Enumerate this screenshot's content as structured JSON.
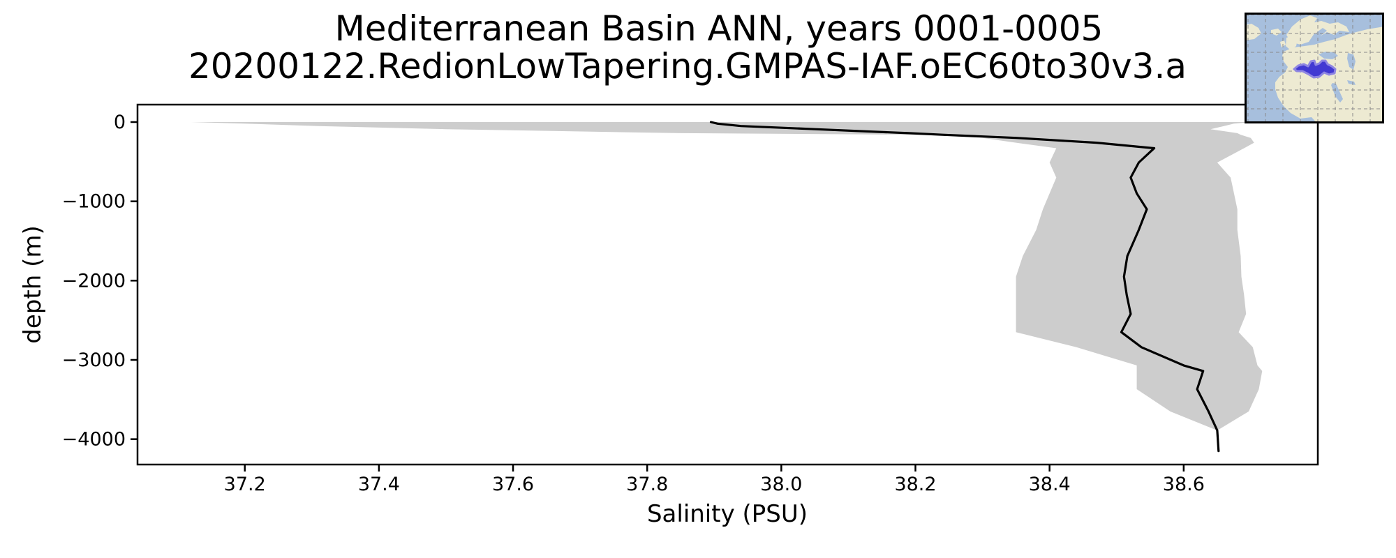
{
  "title": {
    "line1": "Mediterranean Basin ANN, years 0001-0005",
    "line2": "20200122.RedionLowTapering.GMPAS-IAF.oEC60to30v3.a"
  },
  "axes": {
    "x_label": "Salinity (PSU)",
    "y_label": "depth (m)"
  },
  "colors": {
    "figure_bg": "#ffffff",
    "line": "#000000",
    "band": "#cdcdcd",
    "spine": "#000000",
    "tick": "#000000",
    "map_ocean": "#a7bfdd",
    "map_land": "#edead2",
    "map_highlight": "#4239d2",
    "map_highlight_halo": "#8f86e2",
    "map_grid": "#8a8a8a",
    "map_border": "#000000"
  },
  "inset_map": {
    "description": "locator map of Europe / North Africa with Mediterranean Sea region highlighted",
    "highlighted_region": "Mediterranean Sea"
  },
  "chart_data": {
    "type": "line",
    "title": "Mediterranean Basin ANN, years 0001-0005\n20200122.RedionLowTapering.GMPAS-IAF.oEC60to30v3.a",
    "xlabel": "Salinity (PSU)",
    "ylabel": "depth (m)",
    "xlim": [
      37.04,
      38.8
    ],
    "ylim": [
      -4320,
      220
    ],
    "grid": false,
    "legend": "none",
    "x_ticks": {
      "values": [
        37.2,
        37.4,
        37.6,
        37.8,
        38.0,
        38.2,
        38.4,
        38.6
      ],
      "labels": [
        "37.2",
        "37.4",
        "37.6",
        "37.8",
        "38.0",
        "38.2",
        "38.4",
        "38.6"
      ]
    },
    "y_ticks": {
      "values": [
        0,
        -1000,
        -2000,
        -3000,
        -4000
      ],
      "labels": [
        "0",
        "−1000",
        "−2000",
        "−3000",
        "−4000"
      ]
    },
    "depth_m": [
      0,
      -20,
      -50,
      -90,
      -140,
      -160,
      -200,
      -260,
      -330,
      -510,
      -700,
      -900,
      -1100,
      -1360,
      -1690,
      -1950,
      -2180,
      -2420,
      -2650,
      -2840,
      -3070,
      -3140,
      -3370,
      -3650,
      -3890,
      -4150
    ],
    "series": [
      {
        "name": "mean salinity profile",
        "type": "line",
        "color_key": "line",
        "values": [
          37.895,
          37.905,
          37.94,
          38.05,
          38.19,
          38.24,
          38.35,
          38.47,
          38.556,
          38.533,
          38.521,
          38.53,
          38.545,
          38.533,
          38.516,
          38.511,
          38.515,
          38.521,
          38.507,
          38.537,
          38.6,
          38.629,
          38.62,
          38.637,
          38.65,
          38.652
        ]
      },
      {
        "name": "min-max envelope",
        "type": "band",
        "color_key": "band",
        "min": [
          37.12,
          37.2,
          37.31,
          37.5,
          37.85,
          38.22,
          38.3,
          38.35,
          38.41,
          38.4,
          38.41,
          38.4,
          38.39,
          38.38,
          38.36,
          38.35,
          38.35,
          38.35,
          38.35,
          38.44,
          38.53,
          38.53,
          38.53,
          38.58,
          38.65,
          38.652
        ],
        "max": [
          38.7,
          38.675,
          38.66,
          38.64,
          38.68,
          38.685,
          38.7,
          38.705,
          38.69,
          38.65,
          38.67,
          38.675,
          38.68,
          38.68,
          38.685,
          38.686,
          38.69,
          38.693,
          38.682,
          38.703,
          38.71,
          38.717,
          38.712,
          38.697,
          38.65,
          38.652
        ]
      }
    ]
  }
}
